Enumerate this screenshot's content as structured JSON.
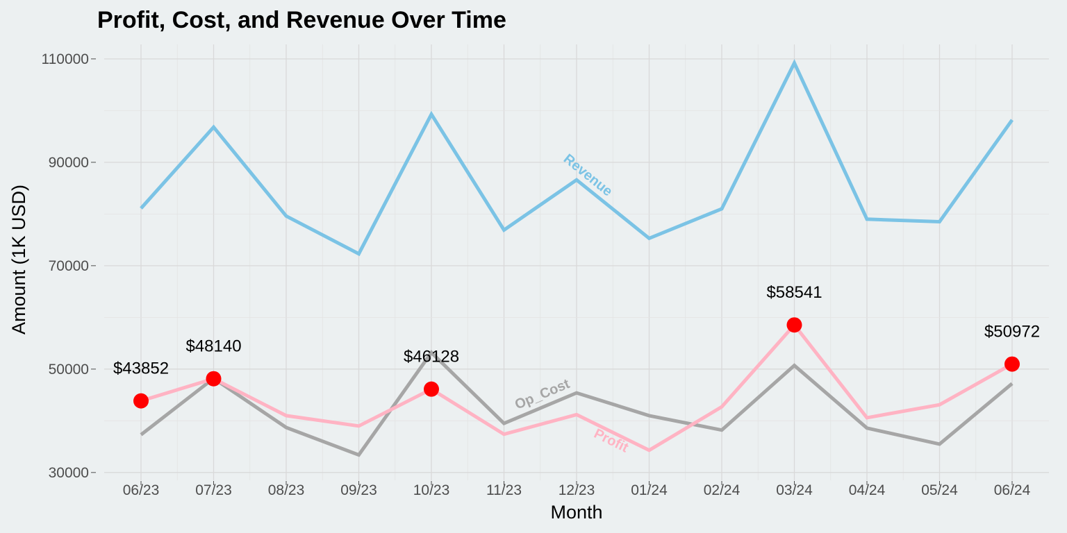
{
  "chart_data": {
    "type": "line",
    "title": "Profit, Cost, and Revenue Over Time",
    "xlabel": "Month",
    "ylabel": "Amount (1K USD)",
    "categories": [
      "06/23",
      "07/23",
      "08/23",
      "09/23",
      "10/23",
      "11/23",
      "12/23",
      "01/24",
      "02/24",
      "03/24",
      "04/24",
      "05/24",
      "06/24"
    ],
    "ylim": [
      28500,
      112800
    ],
    "yticks": [
      30000,
      50000,
      70000,
      90000,
      110000
    ],
    "ytick_labels": [
      "30000",
      "50000",
      "70000",
      "90000",
      "110000"
    ],
    "grid": true,
    "series": [
      {
        "name": "Revenue",
        "color": "#7BC3E5",
        "values": [
          81100,
          96800,
          79600,
          72300,
          99300,
          76900,
          86600,
          75300,
          81000,
          109200,
          79000,
          78500,
          98200
        ]
      },
      {
        "name": "Op_Cost",
        "color": "#A6A6A6",
        "values": [
          37300,
          48200,
          38700,
          33400,
          53200,
          39500,
          45400,
          41000,
          38200,
          50700,
          38600,
          35500,
          47200
        ]
      },
      {
        "name": "Profit",
        "color": "#FFB3C3",
        "values": [
          43852,
          48140,
          41000,
          39000,
          46128,
          37400,
          41200,
          34300,
          42700,
          58541,
          40600,
          43100,
          50972
        ]
      }
    ],
    "highlight_points": {
      "series": "Profit",
      "color": "#FF0000",
      "points": [
        {
          "index": 0,
          "value": 43852,
          "label": "$43852"
        },
        {
          "index": 1,
          "value": 48140,
          "label": "$48140"
        },
        {
          "index": 4,
          "value": 46128,
          "label": "$46128"
        },
        {
          "index": 9,
          "value": 58541,
          "label": "$58541"
        },
        {
          "index": 12,
          "value": 50972,
          "label": "$50972"
        }
      ]
    }
  }
}
